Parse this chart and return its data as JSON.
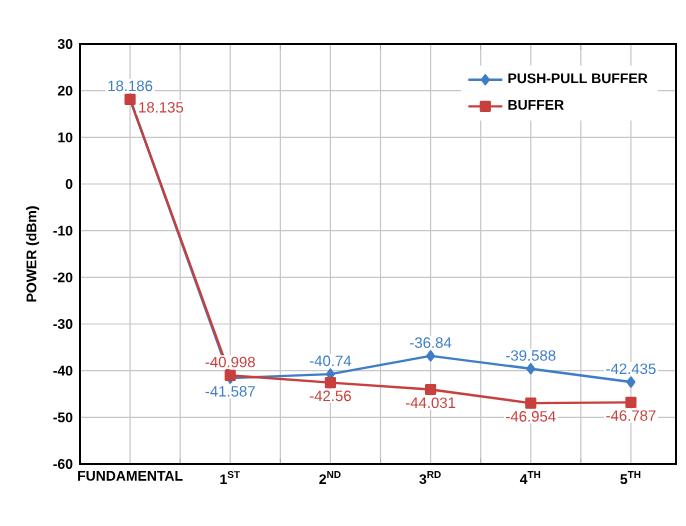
{
  "chart_data": {
    "type": "line",
    "ylabel": "POWER (dBm)",
    "categories": [
      "FUNDAMENTAL",
      "1$^{ST}$",
      "2$^{ND}$",
      "3$^{RD}$",
      "4$^{TH}$",
      "5$^{TH}$"
    ],
    "series": [
      {
        "name": "PUSH-PULL BUFFER",
        "color": "#3f7ec6",
        "marker": "diamond",
        "values": [
          18.186,
          -41.587,
          -40.74,
          -36.84,
          -39.588,
          -42.435
        ]
      },
      {
        "name": "BUFFER",
        "color": "#c7403d",
        "marker": "square",
        "values": [
          18.135,
          -40.998,
          -42.56,
          -44.031,
          -46.954,
          -46.787
        ]
      }
    ],
    "ylim": [
      -60,
      30
    ],
    "yticks": [
      -60,
      -50,
      -40,
      -30,
      -20,
      -10,
      0,
      10,
      20,
      30
    ],
    "grid": true,
    "legend": "top right",
    "data_labels": true,
    "line_style": "solid"
  }
}
